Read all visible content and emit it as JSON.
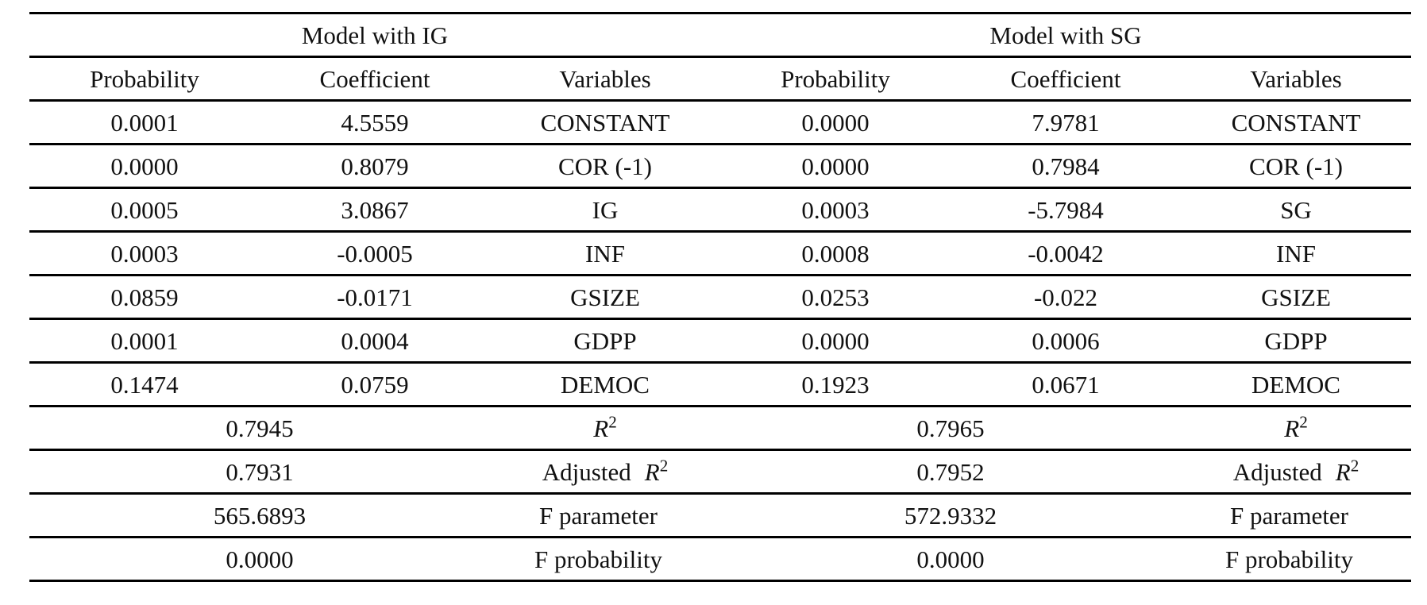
{
  "table": {
    "models": [
      {
        "title": "Model with IG",
        "columns": [
          "Probability",
          "Coefficient",
          "Variables"
        ],
        "rows": [
          {
            "probability": "0.0001",
            "coefficient": "4.5559",
            "variable": "CONSTANT"
          },
          {
            "probability": "0.0000",
            "coefficient": "0.8079",
            "variable": "COR (-1)"
          },
          {
            "probability": "0.0005",
            "coefficient": "3.0867",
            "variable": "IG"
          },
          {
            "probability": "0.0003",
            "coefficient": "-0.0005",
            "variable": "INF"
          },
          {
            "probability": "0.0859",
            "coefficient": "-0.0171",
            "variable": "GSIZE"
          },
          {
            "probability": "0.0001",
            "coefficient": "0.0004",
            "variable": "GDPP"
          },
          {
            "probability": "0.1474",
            "coefficient": "0.0759",
            "variable": "DEMOC"
          }
        ],
        "summary": [
          {
            "value": "0.7945",
            "prefix": "",
            "math": "R",
            "sup": "2"
          },
          {
            "value": "0.7931",
            "prefix": "Adjusted",
            "math": "R",
            "sup": "2"
          },
          {
            "value": "565.6893",
            "prefix": "F parameter",
            "math": "",
            "sup": ""
          },
          {
            "value": "0.0000",
            "prefix": "F probability",
            "math": "",
            "sup": ""
          }
        ]
      },
      {
        "title": "Model with SG",
        "columns": [
          "Probability",
          "Coefficient",
          "Variables"
        ],
        "rows": [
          {
            "probability": "0.0000",
            "coefficient": "7.9781",
            "variable": "CONSTANT"
          },
          {
            "probability": "0.0000",
            "coefficient": "0.7984",
            "variable": "COR (-1)"
          },
          {
            "probability": "0.0003",
            "coefficient": "-5.7984",
            "variable": "SG"
          },
          {
            "probability": "0.0008",
            "coefficient": "-0.0042",
            "variable": "INF"
          },
          {
            "probability": "0.0253",
            "coefficient": "-0.022",
            "variable": "GSIZE"
          },
          {
            "probability": "0.0000",
            "coefficient": "0.0006",
            "variable": "GDPP"
          },
          {
            "probability": "0.1923",
            "coefficient": "0.0671",
            "variable": "DEMOC"
          }
        ],
        "summary": [
          {
            "value": "0.7965",
            "prefix": "",
            "math": "R",
            "sup": "2"
          },
          {
            "value": "0.7952",
            "prefix": "Adjusted",
            "math": "R",
            "sup": "2"
          },
          {
            "value": "572.9332",
            "prefix": "F parameter",
            "math": "",
            "sup": ""
          },
          {
            "value": "0.0000",
            "prefix": "F probability",
            "math": "",
            "sup": ""
          }
        ]
      }
    ]
  },
  "colors": {
    "text": "#111111",
    "rule": "#000000",
    "background": "#ffffff"
  }
}
